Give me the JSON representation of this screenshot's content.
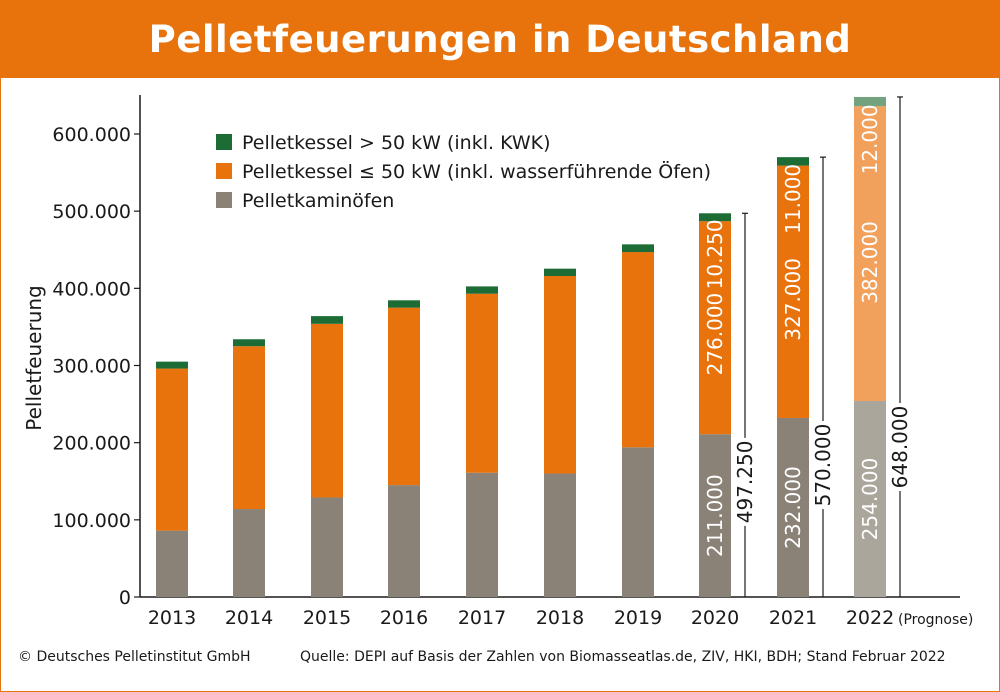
{
  "header": {
    "title": "Pelletfeuerungen in Deutschland"
  },
  "footer": {
    "copyright": "© Deutsches Pelletinstitut GmbH",
    "source": "Quelle: DEPI auf Basis der Zahlen von Biomasseatlas.de, ZIV, HKI, BDH; Stand Februar 2022"
  },
  "colors": {
    "brand": "#e8720c",
    "kamin": "#8a8177",
    "kessel_small": "#e8720c",
    "kessel_large": "#1d6b35",
    "kamin_forecast": "#aba69c",
    "kessel_small_forecast": "#f2a15d",
    "kessel_large_forecast": "#74a27e"
  },
  "chart_data": {
    "type": "bar",
    "stacked": true,
    "ylabel": "Pelletfeuerung",
    "ylim": [
      0,
      650000
    ],
    "yticks": [
      0,
      100000,
      200000,
      300000,
      400000,
      500000,
      600000
    ],
    "ytick_labels": [
      "0",
      "100.000",
      "200.000",
      "300.000",
      "400.000",
      "500.000",
      "600.000"
    ],
    "categories": [
      "2013",
      "2014",
      "2015",
      "2016",
      "2017",
      "2018",
      "2019",
      "2020",
      "2021",
      "2022"
    ],
    "forecast_note": "(Prognose)",
    "forecast_category": "2022",
    "legend_position": "top-left",
    "series": [
      {
        "name": "Pelletkaminöfen",
        "color_key": "kamin",
        "values": [
          86000,
          114000,
          129000,
          145000,
          161000,
          160000,
          194000,
          211000,
          232000,
          254000
        ]
      },
      {
        "name": "Pelletkessel ≤ 50 kW (inkl. wasserführende Öfen)",
        "color_key": "kessel_small",
        "values": [
          210000,
          211000,
          225000,
          230000,
          232000,
          256000,
          253000,
          276000,
          327000,
          382000
        ]
      },
      {
        "name": "Pelletkessel > 50 kW (inkl. KWK)",
        "color_key": "kessel_large",
        "values": [
          9000,
          9000,
          10000,
          9500,
          9500,
          9500,
          10000,
          10250,
          11000,
          12000
        ]
      }
    ],
    "legend_order": [
      2,
      1,
      0
    ],
    "value_labels": [
      {
        "category": "2020",
        "series": 0,
        "text": "211.000"
      },
      {
        "category": "2020",
        "series": 1,
        "text": "276.000"
      },
      {
        "category": "2020",
        "series": 2,
        "text": "10.250"
      },
      {
        "category": "2021",
        "series": 0,
        "text": "232.000"
      },
      {
        "category": "2021",
        "series": 1,
        "text": "327.000"
      },
      {
        "category": "2021",
        "series": 2,
        "text": "11.000"
      },
      {
        "category": "2022",
        "series": 0,
        "text": "254.000"
      },
      {
        "category": "2022",
        "series": 1,
        "text": "382.000"
      },
      {
        "category": "2022",
        "series": 2,
        "text": "12.000"
      }
    ],
    "total_labels": [
      {
        "category": "2020",
        "value": 497250,
        "text": "497.250"
      },
      {
        "category": "2021",
        "value": 570000,
        "text": "570.000"
      },
      {
        "category": "2022",
        "value": 648000,
        "text": "648.000"
      }
    ]
  }
}
